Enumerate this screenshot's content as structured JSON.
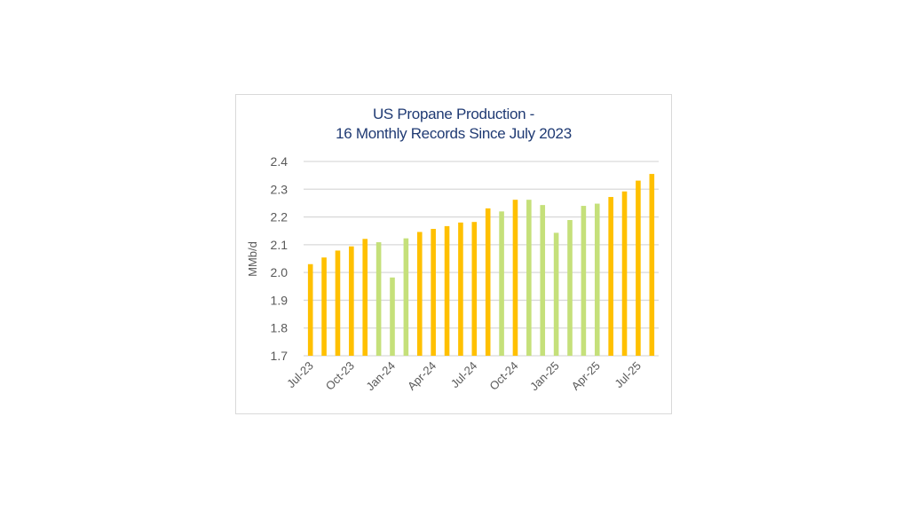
{
  "chart_data": {
    "type": "bar",
    "title": [
      "US Propane Production -",
      "16 Monthly Records Since July 2023"
    ],
    "xlabel": "",
    "ylabel": "MMb/d",
    "ylim": [
      1.7,
      2.4
    ],
    "yticks": [
      "1.7",
      "1.8",
      "1.9",
      "2.0",
      "2.1",
      "2.2",
      "2.3",
      "2.4"
    ],
    "grid": true,
    "categories": [
      "Jul-23",
      "Aug-23",
      "Sep-23",
      "Oct-23",
      "Nov-23",
      "Dec-23",
      "Jan-24",
      "Feb-24",
      "Mar-24",
      "Apr-24",
      "May-24",
      "Jun-24",
      "Jul-24",
      "Aug-24",
      "Sep-24",
      "Oct-24",
      "Nov-24",
      "Dec-24",
      "Jan-25",
      "Feb-25",
      "Mar-25",
      "Apr-25",
      "May-25",
      "Jun-25",
      "Jul-25",
      "Aug-25"
    ],
    "xtick_labels": [
      "Jul-23",
      "Oct-23",
      "Jan-24",
      "Apr-24",
      "Jul-24",
      "Oct-24",
      "Jan-25",
      "Apr-25",
      "Jul-25"
    ],
    "values": [
      2.03,
      2.054,
      2.079,
      2.094,
      2.121,
      2.109,
      1.982,
      2.123,
      2.146,
      2.157,
      2.167,
      2.18,
      2.182,
      2.231,
      2.22,
      2.262,
      2.262,
      2.243,
      2.143,
      2.189,
      2.24,
      2.248,
      2.272,
      2.292,
      2.331,
      2.355
    ],
    "record": [
      true,
      true,
      true,
      true,
      true,
      false,
      false,
      false,
      true,
      true,
      true,
      true,
      true,
      true,
      false,
      true,
      false,
      false,
      false,
      false,
      false,
      false,
      true,
      true,
      true,
      true
    ],
    "colors": {
      "record": "#ffc000",
      "other": "#c5e07a",
      "grid": "#d9d9d9",
      "title": "#1f3a73",
      "ticks": "#595959"
    }
  }
}
